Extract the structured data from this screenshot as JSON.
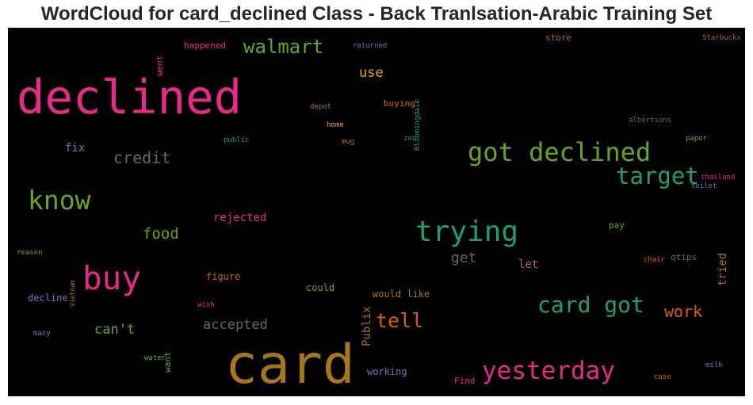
{
  "title": "WordCloud for card_declined Class - Back Tranlsation-Arabic Training Set",
  "colors": {
    "pink": "#e7298a",
    "green": "#66a61e",
    "teal": "#1b9e77",
    "orange": "#d95f02",
    "gold": "#a6761d",
    "yellow": "#e6ab02",
    "purple": "#7570b3",
    "gray": "#666666"
  },
  "words": [
    {
      "text": "card",
      "color": "gold"
    },
    {
      "text": "declined",
      "color": "pink"
    },
    {
      "text": "trying",
      "color": "teal"
    },
    {
      "text": "got declined",
      "color": "green"
    },
    {
      "text": "buy",
      "color": "pink"
    },
    {
      "text": "know",
      "color": "green"
    },
    {
      "text": "yesterday",
      "color": "pink"
    },
    {
      "text": "card got",
      "color": "teal"
    },
    {
      "text": "target",
      "color": "teal"
    },
    {
      "text": "walmart",
      "color": "green"
    },
    {
      "text": "tell",
      "color": "orange"
    },
    {
      "text": "credit",
      "color": "gray"
    },
    {
      "text": "work",
      "color": "orange"
    },
    {
      "text": "food",
      "color": "green"
    },
    {
      "text": "accepted",
      "color": "gray"
    },
    {
      "text": "get",
      "color": "gray"
    },
    {
      "text": "can't",
      "color": "green"
    },
    {
      "text": "use",
      "color": "yellow"
    },
    {
      "text": "rejected",
      "color": "pink"
    },
    {
      "text": "fix",
      "color": "purple"
    },
    {
      "text": "let",
      "color": "gold"
    },
    {
      "text": "tried",
      "color": "gold"
    },
    {
      "text": "Publix",
      "color": "gold"
    },
    {
      "text": "figure",
      "color": "orange"
    },
    {
      "text": "could",
      "color": "green"
    },
    {
      "text": "would like",
      "color": "gold"
    },
    {
      "text": "working",
      "color": "purple"
    },
    {
      "text": "decline",
      "color": "purple"
    },
    {
      "text": "happened",
      "color": "pink"
    },
    {
      "text": "buying",
      "color": "orange"
    },
    {
      "text": "went",
      "color": "pink"
    },
    {
      "text": "store",
      "color": "gold"
    },
    {
      "text": "qtips",
      "color": "gray"
    },
    {
      "text": "pay",
      "color": "green"
    },
    {
      "text": "want",
      "color": "green"
    },
    {
      "text": "Find",
      "color": "pink"
    },
    {
      "text": "returned",
      "color": "purple"
    },
    {
      "text": "Bloomingdale",
      "color": "teal"
    },
    {
      "text": "Starbucks",
      "color": "gold"
    },
    {
      "text": "depot",
      "color": "gold"
    },
    {
      "text": "home",
      "color": "yellow"
    },
    {
      "text": "mug",
      "color": "gold"
    },
    {
      "text": "zoo",
      "color": "teal"
    },
    {
      "text": "public",
      "color": "teal"
    },
    {
      "text": "albertsons",
      "color": "gray"
    },
    {
      "text": "paper",
      "color": "green"
    },
    {
      "text": "thailand",
      "color": "pink"
    },
    {
      "text": "toilet",
      "color": "purple"
    },
    {
      "text": "reason",
      "color": "green"
    },
    {
      "text": "Vietnam",
      "color": "gold"
    },
    {
      "text": "chair",
      "color": "orange"
    },
    {
      "text": "wish",
      "color": "pink"
    },
    {
      "text": "macy",
      "color": "purple"
    },
    {
      "text": "water",
      "color": "green"
    },
    {
      "text": "milk",
      "color": "purple"
    },
    {
      "text": "case",
      "color": "orange"
    }
  ]
}
